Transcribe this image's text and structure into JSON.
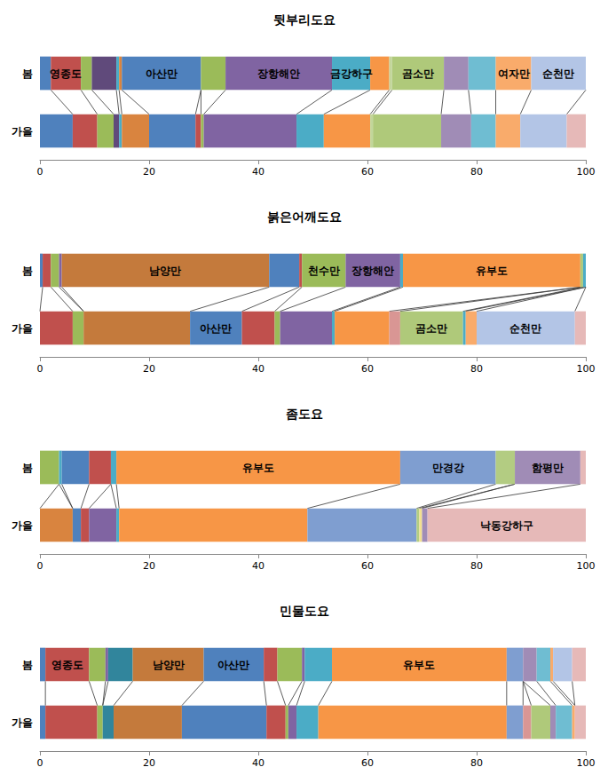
{
  "chart_data": [
    {
      "type": "bar",
      "title": "뒷부리도요",
      "orientation": "horizontal",
      "stacked": true,
      "grid": false,
      "categories": [
        "봄",
        "가을"
      ],
      "xlim": [
        0,
        100
      ],
      "xticks": [
        0,
        20,
        40,
        60,
        80,
        100
      ],
      "series": [
        {
          "color": "#4F81BD",
          "values": [
            2,
            6
          ],
          "labels": [
            null,
            null
          ]
        },
        {
          "color": "#C0504D",
          "values": [
            5.5,
            4.5
          ],
          "labels": [
            "영종도",
            null
          ]
        },
        {
          "color": "#9BBB59",
          "values": [
            2,
            3
          ],
          "labels": [
            null,
            null
          ]
        },
        {
          "color": "#604A7B",
          "values": [
            4.5,
            1
          ],
          "labels": [
            null,
            null
          ]
        },
        {
          "color": "#4BACC6",
          "values": [
            0.5,
            0.5
          ],
          "labels": [
            null,
            null
          ]
        },
        {
          "color": "#D9843F",
          "values": [
            0.5,
            5
          ],
          "labels": [
            null,
            null
          ]
        },
        {
          "color": "#4F81BD",
          "values": [
            14.5,
            8.5
          ],
          "labels": [
            "아산만",
            null
          ]
        },
        {
          "color": "#C0504D",
          "values": [
            0,
            1
          ],
          "labels": [
            null,
            null
          ]
        },
        {
          "color": "#9BBB59",
          "values": [
            4.5,
            0.5
          ],
          "labels": [
            null,
            null
          ]
        },
        {
          "color": "#8064A2",
          "values": [
            19.5,
            17
          ],
          "labels": [
            "장항해안",
            null
          ]
        },
        {
          "color": "#4BACC6",
          "values": [
            7,
            5
          ],
          "labels": [
            "금강하구",
            null
          ]
        },
        {
          "color": "#F79646",
          "values": [
            3.5,
            8.5
          ],
          "labels": [
            null,
            null
          ]
        },
        {
          "color": "#C3D69B",
          "values": [
            0.5,
            0.5
          ],
          "labels": [
            null,
            null
          ]
        },
        {
          "color": "#AFC97A",
          "values": [
            9.5,
            12.5
          ],
          "labels": [
            "곰소만",
            null
          ]
        },
        {
          "color": "#A08CB6",
          "values": [
            4.5,
            5.5
          ],
          "labels": [
            null,
            null
          ]
        },
        {
          "color": "#6FBDD2",
          "values": [
            5,
            4.5
          ],
          "labels": [
            null,
            null
          ]
        },
        {
          "color": "#F9AB6B",
          "values": [
            6.5,
            4.5
          ],
          "labels": [
            "여자만",
            null
          ]
        },
        {
          "color": "#B3C5E6",
          "values": [
            10,
            8.5
          ],
          "labels": [
            "순천만",
            null
          ]
        },
        {
          "color": "#E6B9B8",
          "values": [
            0,
            3.5
          ],
          "labels": [
            null,
            null
          ]
        }
      ]
    },
    {
      "type": "bar",
      "title": "붉은어깨도요",
      "orientation": "horizontal",
      "stacked": true,
      "grid": false,
      "categories": [
        "봄",
        "가을"
      ],
      "xlim": [
        0,
        100
      ],
      "xticks": [
        0,
        20,
        40,
        60,
        80,
        100
      ],
      "series": [
        {
          "color": "#4F81BD",
          "values": [
            0.5,
            0
          ],
          "labels": [
            null,
            null
          ]
        },
        {
          "color": "#C0504D",
          "values": [
            1.5,
            6
          ],
          "labels": [
            null,
            null
          ]
        },
        {
          "color": "#9BBB59",
          "values": [
            1.5,
            2
          ],
          "labels": [
            null,
            null
          ]
        },
        {
          "color": "#8064A2",
          "values": [
            0.5,
            0
          ],
          "labels": [
            null,
            null
          ]
        },
        {
          "color": "#C47A3C",
          "values": [
            38,
            19.5
          ],
          "labels": [
            "남양만",
            null
          ]
        },
        {
          "color": "#4F81BD",
          "values": [
            5.5,
            9.5
          ],
          "labels": [
            null,
            "아산만"
          ]
        },
        {
          "color": "#C0504D",
          "values": [
            0.5,
            6
          ],
          "labels": [
            null,
            null
          ]
        },
        {
          "color": "#9BBB59",
          "values": [
            8,
            1
          ],
          "labels": [
            "천수만",
            null
          ]
        },
        {
          "color": "#8064A2",
          "values": [
            10,
            9.5
          ],
          "labels": [
            "장항해안",
            null
          ]
        },
        {
          "color": "#4BACC6",
          "values": [
            0.5,
            0.5
          ],
          "labels": [
            null,
            null
          ]
        },
        {
          "color": "#F79646",
          "values": [
            32.5,
            10
          ],
          "labels": [
            "유부도",
            null
          ]
        },
        {
          "color": "#D99694",
          "values": [
            0,
            2
          ],
          "labels": [
            null,
            null
          ]
        },
        {
          "color": "#AFC97A",
          "values": [
            0.5,
            11.5
          ],
          "labels": [
            null,
            "곰소만"
          ]
        },
        {
          "color": "#4BACC6",
          "values": [
            0.5,
            0.5
          ],
          "labels": [
            null,
            null
          ]
        },
        {
          "color": "#F9AB6B",
          "values": [
            0,
            2
          ],
          "labels": [
            null,
            null
          ]
        },
        {
          "color": "#B3C5E6",
          "values": [
            0,
            18
          ],
          "labels": [
            null,
            "순천만"
          ]
        },
        {
          "color": "#E6B9B8",
          "values": [
            0,
            2
          ],
          "labels": [
            null,
            null
          ]
        }
      ]
    },
    {
      "type": "bar",
      "title": "좀도요",
      "orientation": "horizontal",
      "stacked": true,
      "grid": false,
      "categories": [
        "봄",
        "가을"
      ],
      "xlim": [
        0,
        100
      ],
      "xticks": [
        0,
        20,
        40,
        60,
        80,
        100
      ],
      "series": [
        {
          "color": "#9BBB59",
          "values": [
            3.5,
            0
          ],
          "labels": [
            null,
            null
          ]
        },
        {
          "color": "#D9843F",
          "values": [
            0,
            6
          ],
          "labels": [
            null,
            null
          ]
        },
        {
          "color": "#4BACC6",
          "values": [
            0.5,
            0
          ],
          "labels": [
            null,
            null
          ]
        },
        {
          "color": "#4F81BD",
          "values": [
            5,
            1.5
          ],
          "labels": [
            null,
            null
          ]
        },
        {
          "color": "#C0504D",
          "values": [
            4,
            1.5
          ],
          "labels": [
            null,
            null
          ]
        },
        {
          "color": "#8064A2",
          "values": [
            0,
            5
          ],
          "labels": [
            null,
            null
          ]
        },
        {
          "color": "#4BACC6",
          "values": [
            1,
            0.5
          ],
          "labels": [
            null,
            null
          ]
        },
        {
          "color": "#F79646",
          "values": [
            52,
            34.5
          ],
          "labels": [
            "유부도",
            null
          ]
        },
        {
          "color": "#7F9ED0",
          "values": [
            17.5,
            20
          ],
          "labels": [
            "만경강",
            null
          ]
        },
        {
          "color": "#B3CC82",
          "values": [
            3.5,
            0.5
          ],
          "labels": [
            null,
            null
          ]
        },
        {
          "color": "#F2E08F",
          "values": [
            0,
            0.5
          ],
          "labels": [
            null,
            null
          ]
        },
        {
          "color": "#A08CB6",
          "values": [
            12,
            1
          ],
          "labels": [
            "함평만",
            null
          ]
        },
        {
          "color": "#E6B9B8",
          "values": [
            1,
            29
          ],
          "labels": [
            null,
            "낙동강하구"
          ]
        }
      ]
    },
    {
      "type": "bar",
      "title": "민물도요",
      "orientation": "horizontal",
      "stacked": true,
      "grid": false,
      "categories": [
        "봄",
        "가을"
      ],
      "xlim": [
        0,
        100
      ],
      "xticks": [
        0,
        20,
        40,
        60,
        80,
        100
      ],
      "series": [
        {
          "color": "#4F81BD",
          "values": [
            1,
            1
          ],
          "labels": [
            null,
            null
          ]
        },
        {
          "color": "#C0504D",
          "values": [
            8,
            9.5
          ],
          "labels": [
            "영종도",
            null
          ]
        },
        {
          "color": "#9BBB59",
          "values": [
            3,
            1
          ],
          "labels": [
            null,
            null
          ]
        },
        {
          "color": "#8064A2",
          "values": [
            0.5,
            0
          ],
          "labels": [
            null,
            null
          ]
        },
        {
          "color": "#31859C",
          "values": [
            4.5,
            2
          ],
          "labels": [
            null,
            null
          ]
        },
        {
          "color": "#C47A3C",
          "values": [
            13,
            12.5
          ],
          "labels": [
            "남양만",
            null
          ]
        },
        {
          "color": "#4F81BD",
          "values": [
            11,
            15.5
          ],
          "labels": [
            "아산만",
            null
          ]
        },
        {
          "color": "#C0504D",
          "values": [
            2.5,
            3.5
          ],
          "labels": [
            null,
            null
          ]
        },
        {
          "color": "#9BBB59",
          "values": [
            4.5,
            0.5
          ],
          "labels": [
            null,
            null
          ]
        },
        {
          "color": "#8064A2",
          "values": [
            0.5,
            1.5
          ],
          "labels": [
            null,
            null
          ]
        },
        {
          "color": "#4BACC6",
          "values": [
            5,
            4
          ],
          "labels": [
            null,
            null
          ]
        },
        {
          "color": "#F79646",
          "values": [
            32,
            34.5
          ],
          "labels": [
            "유부도",
            null
          ]
        },
        {
          "color": "#7F9ED0",
          "values": [
            3,
            3
          ],
          "labels": [
            null,
            null
          ]
        },
        {
          "color": "#D99694",
          "values": [
            0,
            1.5
          ],
          "labels": [
            null,
            null
          ]
        },
        {
          "color": "#AFC97A",
          "values": [
            0,
            3.5
          ],
          "labels": [
            null,
            null
          ]
        },
        {
          "color": "#A08CB6",
          "values": [
            2.5,
            1
          ],
          "labels": [
            null,
            null
          ]
        },
        {
          "color": "#6FBDD2",
          "values": [
            2.5,
            3
          ],
          "labels": [
            null,
            null
          ]
        },
        {
          "color": "#F9AB6B",
          "values": [
            0.5,
            0.5
          ],
          "labels": [
            null,
            null
          ]
        },
        {
          "color": "#B3C5E6",
          "values": [
            3.5,
            0
          ],
          "labels": [
            null,
            null
          ]
        },
        {
          "color": "#E6B9B8",
          "values": [
            2.5,
            2
          ],
          "labels": [
            null,
            null
          ]
        }
      ]
    }
  ]
}
